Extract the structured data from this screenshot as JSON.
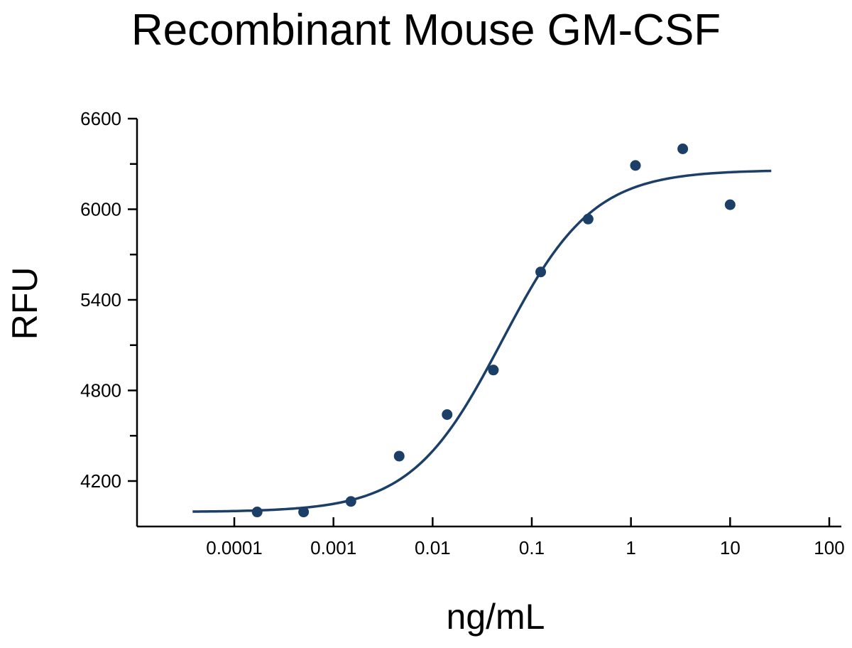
{
  "chart_data": {
    "type": "scatter",
    "title": "Recombinant Mouse GM-CSF",
    "xlabel": "ng/mL",
    "ylabel": "RFU",
    "x_scale": "log",
    "xlim": [
      1e-05,
      200
    ],
    "ylim": [
      3900,
      6600
    ],
    "x_ticks": [
      {
        "value": 0.0001,
        "label": "0.0001"
      },
      {
        "value": 0.001,
        "label": "0.001"
      },
      {
        "value": 0.01,
        "label": "0.01"
      },
      {
        "value": 0.1,
        "label": "0.1"
      },
      {
        "value": 1,
        "label": "1"
      },
      {
        "value": 10,
        "label": "10"
      },
      {
        "value": 100,
        "label": "100"
      }
    ],
    "y_ticks": [
      {
        "value": 4200,
        "label": "4200"
      },
      {
        "value": 4800,
        "label": "4800"
      },
      {
        "value": 5400,
        "label": "5400"
      },
      {
        "value": 6000,
        "label": "6000"
      },
      {
        "value": 6600,
        "label": "6600"
      }
    ],
    "y_minor_ticks": [
      4500,
      5100,
      5700,
      6300
    ],
    "grid": false,
    "legend": "none",
    "series": [
      {
        "points": [
          {
            "x": 0.00017,
            "y": 3995
          },
          {
            "x": 0.0005,
            "y": 3995
          },
          {
            "x": 0.0015,
            "y": 4065
          },
          {
            "x": 0.0046,
            "y": 4365
          },
          {
            "x": 0.014,
            "y": 4640
          },
          {
            "x": 0.041,
            "y": 4935
          },
          {
            "x": 0.123,
            "y": 5585
          },
          {
            "x": 0.37,
            "y": 5935
          },
          {
            "x": 1.11,
            "y": 6290
          },
          {
            "x": 3.33,
            "y": 6400
          },
          {
            "x": 10.0,
            "y": 6030
          }
        ],
        "fit": {
          "model": "4PL",
          "bottom": 3995,
          "top": 6260,
          "ec50": 0.05,
          "hill": 0.95,
          "x_range": [
            3.8e-05,
            26
          ]
        }
      }
    ],
    "colors": {
      "series": "#1b3f66",
      "axis": "#000000"
    }
  }
}
